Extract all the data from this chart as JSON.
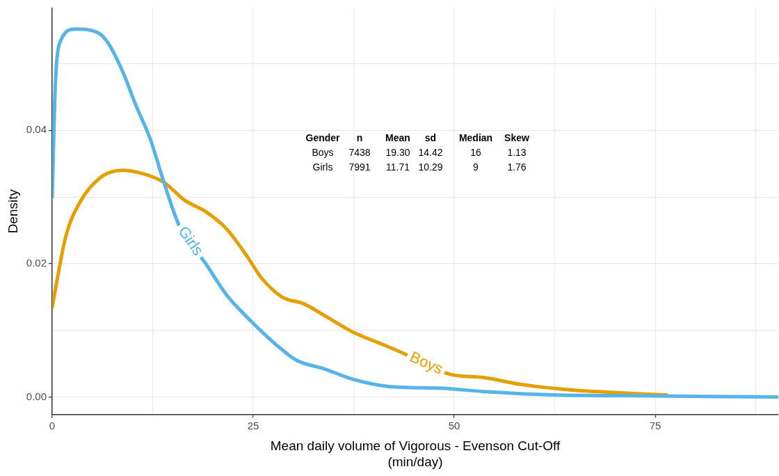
{
  "chart_data": {
    "type": "line",
    "xlabel": "Mean daily volume of Vigorous - Evenson Cut-Off\n(min/day)",
    "ylabel": "Density",
    "xlim": [
      0,
      90.3
    ],
    "ylim": [
      -0.0026,
      0.0583
    ],
    "xticks": [
      0,
      {
        "value": 12.5,
        "label": null
      },
      25,
      {
        "value": 37.5,
        "label": null
      },
      50,
      {
        "value": 62.5,
        "label": null
      },
      75,
      {
        "value": 87.5,
        "label": null
      }
    ],
    "yticks": [
      "0.00",
      {
        "value": 0.01,
        "label": null
      },
      {
        "value": 0.02,
        "label": "0.02"
      },
      {
        "value": 0.03,
        "label": null
      },
      {
        "value": 0.04,
        "label": "0.04"
      },
      {
        "value": 0.05,
        "label": null
      }
    ],
    "grid": true,
    "legend": false,
    "marker": "none",
    "line_style": "solid",
    "annotations": [
      "Gender\tn\tMean\tsd\tMedian\tSkew",
      "Boys\t7438\t19.30\t14.42\t16\t1.13",
      "Girls\t7991\t11.71\t10.29\t9\t1.76"
    ],
    "series": [
      {
        "name": "Girls",
        "color": "#56b4e9",
        "x": [
          0,
          0.4,
          0.9,
          2.9,
          5.6,
          6.9,
          8.7,
          10.4,
          12.2,
          13.9,
          15.8,
          19.1,
          21.7,
          24.3,
          27.8,
          30.4,
          33.9,
          37.3,
          41.7,
          48.6,
          53.8,
          62.5,
          71.2,
          79.9,
          90.3
        ],
        "values": [
          0.03,
          0.047,
          0.053,
          0.0552,
          0.0547,
          0.0532,
          0.049,
          0.0438,
          0.0387,
          0.0322,
          0.0257,
          0.02,
          0.0153,
          0.0119,
          0.0079,
          0.0055,
          0.0042,
          0.0027,
          0.0016,
          0.0013,
          0.0008,
          0.0003,
          0.0002,
          0.0001,
          0
        ]
      },
      {
        "name": "Boys",
        "color": "#e69f00",
        "x": [
          0,
          1.7,
          3.5,
          6.1,
          8.7,
          11.3,
          13.9,
          16.5,
          19.1,
          21.7,
          24.3,
          26,
          28.6,
          31.25,
          33.9,
          37.3,
          41.7,
          43.4,
          49.5,
          53.8,
          58.2,
          64.2,
          69.4,
          76.4
        ],
        "values": [
          0.0135,
          0.0241,
          0.0293,
          0.033,
          0.034,
          0.0335,
          0.0322,
          0.0295,
          0.0278,
          0.0252,
          0.021,
          0.0179,
          0.015,
          0.014,
          0.0122,
          0.0098,
          0.0076,
          0.0067,
          0.0034,
          0.0029,
          0.0019,
          0.0011,
          0.0007,
          0.0003
        ]
      }
    ]
  }
}
